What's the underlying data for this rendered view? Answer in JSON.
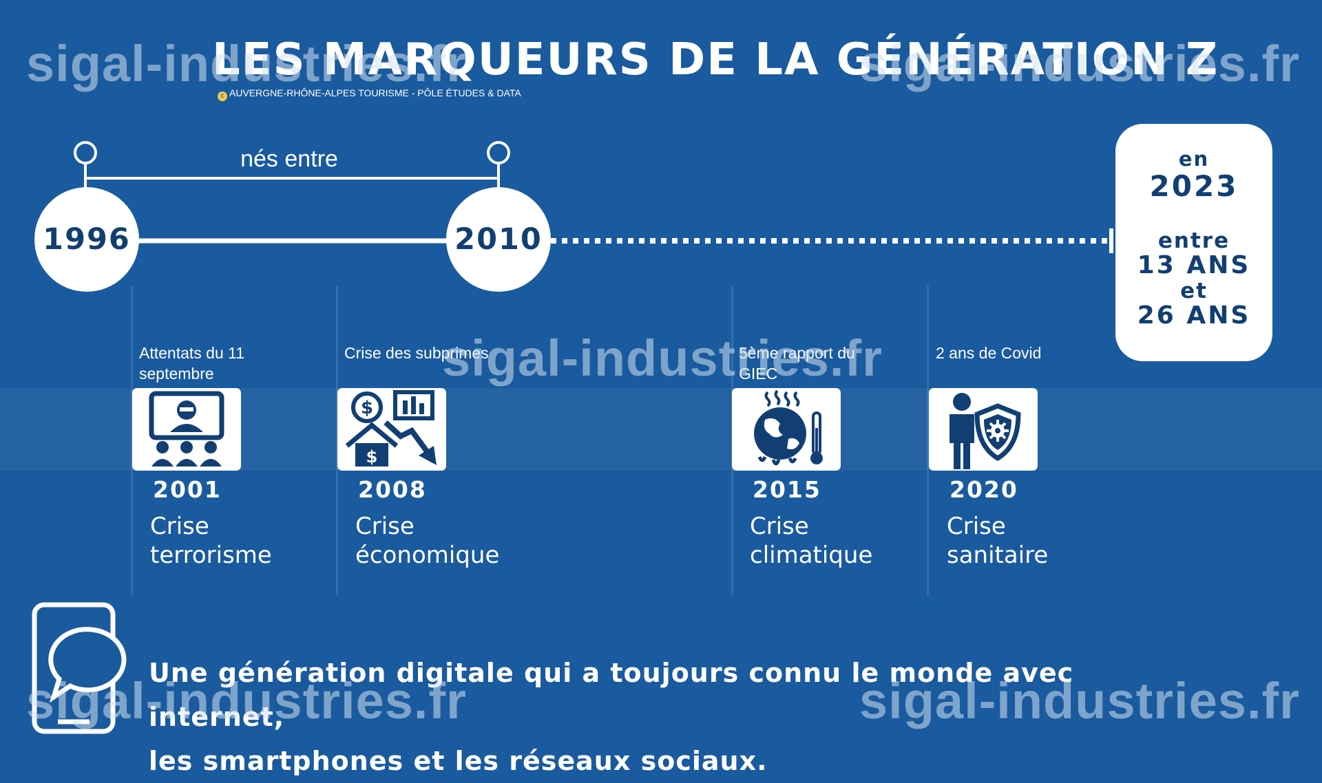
{
  "header": {
    "title": "LES MARQUEURS DE LA GÉNÉRATION Z",
    "credit": "AUVERGNE-RHÔNE-ALPES TOURISME - PÔLE ÉTUDES & DATA",
    "credit_mark": "c"
  },
  "timeline": {
    "born_label": "nés entre",
    "start_year": "1996",
    "end_year": "2010"
  },
  "age_box": {
    "line1": "en",
    "line2": "2023",
    "line3": "entre",
    "line4": "13 ANS",
    "line5": "et",
    "line6": "26 ANS"
  },
  "events": [
    {
      "kicker": "Attentats du 11 septembre",
      "year": "2001",
      "crisis_line1": "Crise",
      "crisis_line2": "terrorisme",
      "icon": "terrorism-icon"
    },
    {
      "kicker": "Crise des subprimes",
      "year": "2008",
      "crisis_line1": "Crise",
      "crisis_line2": "économique",
      "icon": "economy-crash-icon"
    },
    {
      "kicker": "5ème rapport du GIEC",
      "year": "2015",
      "crisis_line1": "Crise",
      "crisis_line2": "climatique",
      "icon": "melting-globe-icon"
    },
    {
      "kicker": "2 ans de Covid",
      "year": "2020",
      "crisis_line1": "Crise",
      "crisis_line2": "sanitaire",
      "icon": "health-shield-icon"
    }
  ],
  "footer": {
    "line1": "Une génération digitale qui a toujours connu le monde avec internet,",
    "line2": "les smartphones et les réseaux sociaux.",
    "icon": "smartphone-chat-icon"
  },
  "watermark": "sigal-industries.fr",
  "colors": {
    "background": "#1a5a9e",
    "foreground": "#ffffff",
    "icon": "#123f73",
    "credit_mark": "#f2c94c"
  }
}
